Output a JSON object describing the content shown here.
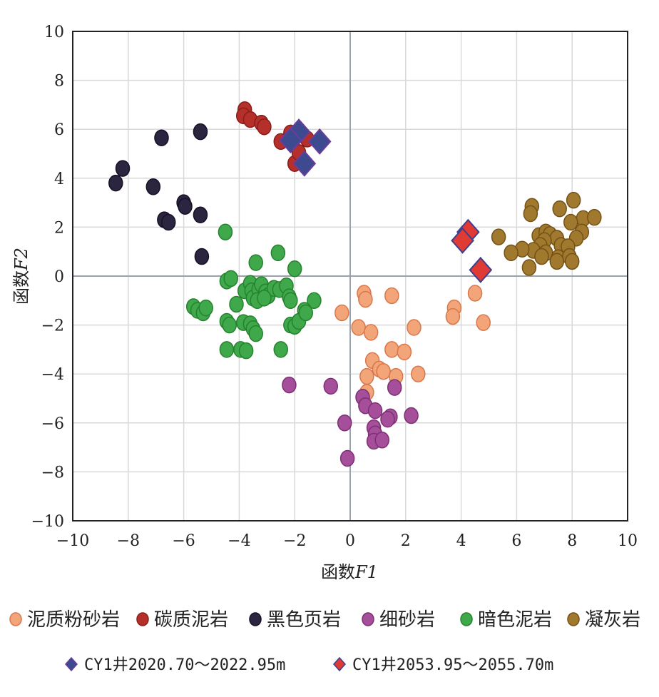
{
  "chart_data": {
    "type": "scatter",
    "title": "",
    "xlabel_prefix": "函数",
    "xlabel_var": "F1",
    "ylabel_prefix": "函数",
    "ylabel_var": "F2",
    "xlim": [
      -10,
      10
    ],
    "ylim": [
      -10,
      10
    ],
    "grid": true,
    "x_ticks": [
      "−10",
      "−8",
      "−6",
      "−4",
      "−2",
      "0",
      "2",
      "4",
      "6",
      "8",
      "10"
    ],
    "y_ticks": [
      "10",
      "8",
      "6",
      "4",
      "2",
      "0",
      "−2",
      "−4",
      "−6",
      "−8",
      "−10"
    ],
    "legend_position": "bottom",
    "series": [
      {
        "name": "泥质粉砂岩",
        "marker": "circle",
        "color": "#f2a578",
        "edge": "#d9764a",
        "points": [
          [
            0.5,
            -0.7
          ],
          [
            0.55,
            -0.95
          ],
          [
            1.5,
            -0.8
          ],
          [
            -0.3,
            -1.5
          ],
          [
            0.3,
            -2.1
          ],
          [
            0.75,
            -2.3
          ],
          [
            2.3,
            -2.1
          ],
          [
            1.5,
            -3.0
          ],
          [
            1.95,
            -3.1
          ],
          [
            0.8,
            -3.45
          ],
          [
            1.05,
            -3.8
          ],
          [
            1.2,
            -3.9
          ],
          [
            0.6,
            -4.1
          ],
          [
            1.65,
            -4.1
          ],
          [
            2.45,
            -4.0
          ],
          [
            0.6,
            -4.75
          ],
          [
            3.75,
            -1.3
          ],
          [
            3.7,
            -1.65
          ],
          [
            4.5,
            -0.7
          ],
          [
            4.8,
            -1.9
          ]
        ]
      },
      {
        "name": "碳质泥岩",
        "marker": "circle",
        "color": "#b5302a",
        "edge": "#8a1d18",
        "points": [
          [
            -3.8,
            6.8
          ],
          [
            -3.85,
            6.55
          ],
          [
            -3.6,
            6.4
          ],
          [
            -3.2,
            6.25
          ],
          [
            -3.1,
            6.1
          ],
          [
            -2.5,
            5.5
          ],
          [
            -2.15,
            5.85
          ],
          [
            -1.55,
            5.6
          ],
          [
            -2.0,
            4.6
          ],
          [
            -1.85,
            5.05
          ]
        ]
      },
      {
        "name": "黑色页岩",
        "marker": "circle",
        "color": "#2c2540",
        "edge": "#160f26",
        "points": [
          [
            -6.8,
            5.65
          ],
          [
            -5.4,
            5.9
          ],
          [
            -8.2,
            4.4
          ],
          [
            -8.45,
            3.8
          ],
          [
            -7.1,
            3.65
          ],
          [
            -6.0,
            3.0
          ],
          [
            -5.95,
            2.85
          ],
          [
            -5.4,
            2.5
          ],
          [
            -6.7,
            2.3
          ],
          [
            -6.55,
            2.2
          ],
          [
            -5.35,
            0.8
          ]
        ]
      },
      {
        "name": "细砂岩",
        "marker": "circle",
        "color": "#a54f9a",
        "edge": "#7e2f74",
        "points": [
          [
            -2.2,
            -4.45
          ],
          [
            -0.7,
            -4.5
          ],
          [
            0.45,
            -4.95
          ],
          [
            0.55,
            -5.3
          ],
          [
            0.9,
            -5.5
          ],
          [
            1.6,
            -4.55
          ],
          [
            1.45,
            -5.75
          ],
          [
            1.35,
            -5.85
          ],
          [
            2.2,
            -5.7
          ],
          [
            -0.2,
            -6.0
          ],
          [
            0.85,
            -6.2
          ],
          [
            0.9,
            -6.45
          ],
          [
            0.85,
            -6.75
          ],
          [
            1.15,
            -6.7
          ],
          [
            -0.1,
            -7.45
          ]
        ]
      },
      {
        "name": "暗色泥岩",
        "marker": "circle",
        "color": "#3fa84b",
        "edge": "#26812f",
        "points": [
          [
            -4.5,
            1.8
          ],
          [
            -3.4,
            0.55
          ],
          [
            -2.6,
            0.95
          ],
          [
            -2.0,
            0.3
          ],
          [
            -4.45,
            -0.2
          ],
          [
            -4.3,
            -0.1
          ],
          [
            -3.8,
            -0.6
          ],
          [
            -3.6,
            -0.3
          ],
          [
            -3.55,
            -0.6
          ],
          [
            -3.5,
            -0.9
          ],
          [
            -3.3,
            -0.55
          ],
          [
            -3.2,
            -0.35
          ],
          [
            -3.05,
            -0.65
          ],
          [
            -2.95,
            -0.8
          ],
          [
            -2.75,
            -0.5
          ],
          [
            -2.55,
            -0.55
          ],
          [
            -2.3,
            -0.4
          ],
          [
            -2.2,
            -0.85
          ],
          [
            -3.35,
            -1.0
          ],
          [
            -3.1,
            -0.9
          ],
          [
            -4.1,
            -1.15
          ],
          [
            -2.15,
            -1.0
          ],
          [
            -1.3,
            -1.0
          ],
          [
            -1.65,
            -1.4
          ],
          [
            -5.65,
            -1.25
          ],
          [
            -5.5,
            -1.4
          ],
          [
            -5.3,
            -1.5
          ],
          [
            -5.2,
            -1.3
          ],
          [
            -4.45,
            -1.85
          ],
          [
            -4.35,
            -2.0
          ],
          [
            -3.85,
            -1.9
          ],
          [
            -3.6,
            -1.95
          ],
          [
            -3.5,
            -2.15
          ],
          [
            -3.4,
            -2.35
          ],
          [
            -2.15,
            -2.0
          ],
          [
            -2.0,
            -2.05
          ],
          [
            -1.85,
            -1.85
          ],
          [
            -1.6,
            -1.5
          ],
          [
            -4.45,
            -3.0
          ],
          [
            -3.95,
            -3.0
          ],
          [
            -3.75,
            -3.05
          ],
          [
            -2.5,
            -3.0
          ]
        ]
      },
      {
        "name": "凝灰岩",
        "marker": "circle",
        "color": "#a0782e",
        "edge": "#745216",
        "points": [
          [
            6.55,
            2.85
          ],
          [
            6.5,
            2.55
          ],
          [
            7.55,
            2.75
          ],
          [
            8.05,
            3.1
          ],
          [
            8.4,
            2.35
          ],
          [
            8.8,
            2.4
          ],
          [
            7.95,
            2.2
          ],
          [
            8.35,
            1.8
          ],
          [
            5.35,
            1.6
          ],
          [
            6.8,
            1.65
          ],
          [
            7.05,
            1.8
          ],
          [
            7.2,
            1.7
          ],
          [
            7.45,
            1.55
          ],
          [
            7.0,
            1.45
          ],
          [
            6.85,
            1.25
          ],
          [
            7.6,
            1.25
          ],
          [
            8.15,
            1.55
          ],
          [
            7.85,
            1.2
          ],
          [
            6.6,
            1.05
          ],
          [
            6.2,
            1.1
          ],
          [
            5.8,
            0.95
          ],
          [
            7.05,
            0.95
          ],
          [
            6.9,
            0.8
          ],
          [
            7.5,
            0.75
          ],
          [
            7.9,
            0.8
          ],
          [
            8.0,
            0.6
          ],
          [
            7.45,
            0.6
          ],
          [
            6.45,
            0.35
          ]
        ]
      }
    ],
    "special_series": [
      {
        "name": "CY1井2020.70～2022.95m",
        "marker": "diamond",
        "color": "#3d4a8f",
        "edge": "#6a3d9a",
        "points": [
          [
            -1.85,
            5.9
          ],
          [
            -2.15,
            5.55
          ],
          [
            -1.1,
            5.5
          ],
          [
            -1.65,
            4.6
          ]
        ]
      },
      {
        "name": "CY1井2053.95～2055.70m",
        "marker": "diamond",
        "color": "#e03a34",
        "edge": "#3a3f8f",
        "points": [
          [
            4.25,
            1.8
          ],
          [
            4.05,
            1.45
          ],
          [
            4.7,
            0.25
          ]
        ]
      }
    ]
  }
}
